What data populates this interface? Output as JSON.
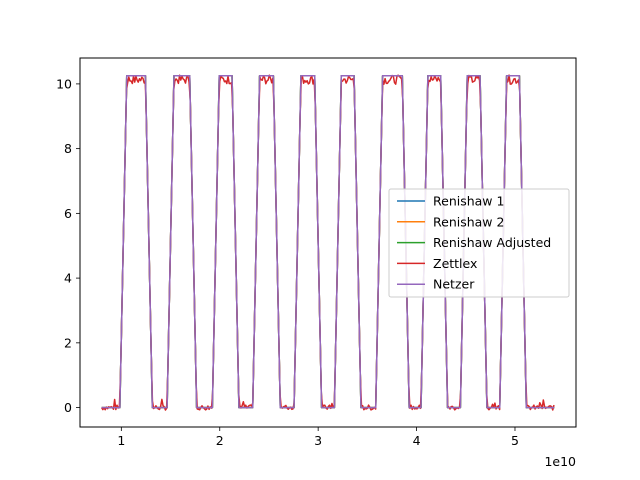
{
  "chart_data": {
    "type": "line",
    "title": "",
    "xlabel": "",
    "ylabel": "",
    "x_offset_label": "1e10",
    "xlim": [
      0.58,
      5.62
    ],
    "ylim": [
      -0.6,
      10.8
    ],
    "x_ticks": [
      1,
      2,
      3,
      4,
      5
    ],
    "x_tick_labels": [
      "1",
      "2",
      "3",
      "4",
      "5"
    ],
    "y_ticks": [
      0,
      2,
      4,
      6,
      8,
      10
    ],
    "y_tick_labels": [
      "0",
      "2",
      "4",
      "6",
      "8",
      "10"
    ],
    "grid": false,
    "legend_position": "center-right",
    "x_range": [
      0.8,
      5.4
    ],
    "pulse_high": 10.25,
    "pulse_low": 0.0,
    "pulses": [
      [
        1.02,
        1.28
      ],
      [
        1.5,
        1.73
      ],
      [
        1.96,
        2.16
      ],
      [
        2.37,
        2.58
      ],
      [
        2.79,
        3.0
      ],
      [
        3.2,
        3.4
      ],
      [
        3.62,
        3.89
      ],
      [
        4.08,
        4.28
      ],
      [
        4.48,
        4.68
      ],
      [
        4.88,
        5.08
      ]
    ],
    "series": [
      {
        "name": "Renishaw 1",
        "color": "#1f77b4"
      },
      {
        "name": "Renishaw 2",
        "color": "#ff7f0e"
      },
      {
        "name": "Renishaw Adjusted",
        "color": "#2ca02c"
      },
      {
        "name": "Zettlex",
        "color": "#d62728"
      },
      {
        "name": "Netzer",
        "color": "#9467bd"
      }
    ]
  }
}
